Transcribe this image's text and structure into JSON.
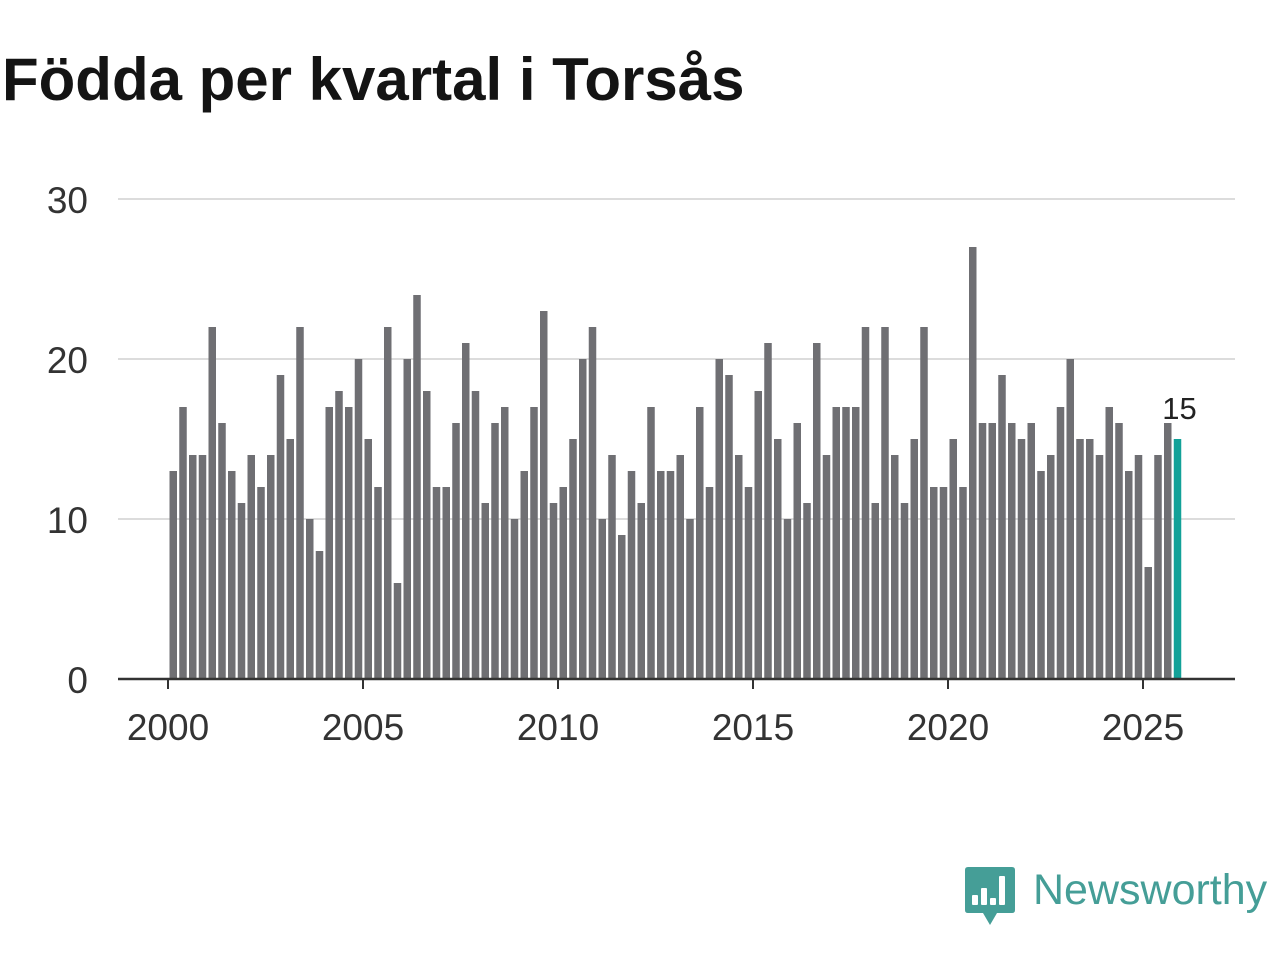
{
  "brand": {
    "name": "Newsworthy",
    "color": "#459e97"
  },
  "colors": {
    "bar": "#6f6f73",
    "highlight": "#12a198",
    "grid": "#dcdcdc",
    "axis": "#333333"
  },
  "chart_data": {
    "type": "bar",
    "title": "Födda per kvartal i Torsås",
    "x_start": 2000,
    "x_step": 0.25,
    "values": [
      13,
      17,
      14,
      14,
      22,
      16,
      13,
      11,
      14,
      12,
      14,
      19,
      15,
      22,
      10,
      8,
      17,
      18,
      17,
      20,
      15,
      12,
      22,
      6,
      20,
      24,
      18,
      12,
      12,
      16,
      21,
      18,
      11,
      16,
      17,
      10,
      13,
      17,
      23,
      11,
      12,
      15,
      20,
      22,
      10,
      14,
      9,
      13,
      11,
      17,
      13,
      13,
      14,
      10,
      17,
      12,
      20,
      19,
      14,
      12,
      18,
      21,
      15,
      10,
      16,
      11,
      21,
      14,
      17,
      17,
      17,
      22,
      11,
      22,
      14,
      11,
      15,
      22,
      12,
      12,
      15,
      12,
      27,
      16,
      16,
      19,
      16,
      15,
      16,
      13,
      14,
      17,
      20,
      15,
      15,
      14,
      17,
      16,
      13,
      14,
      7,
      14,
      16,
      15
    ],
    "ylim": [
      0,
      30
    ],
    "yticks": [
      "0",
      "10",
      "20",
      "30"
    ],
    "xticks": [
      "2000",
      "2005",
      "2010",
      "2015",
      "2020",
      "2025"
    ],
    "grid": true,
    "highlight_index": 103,
    "data_labels": [
      {
        "index": 103,
        "text": "15"
      }
    ]
  }
}
